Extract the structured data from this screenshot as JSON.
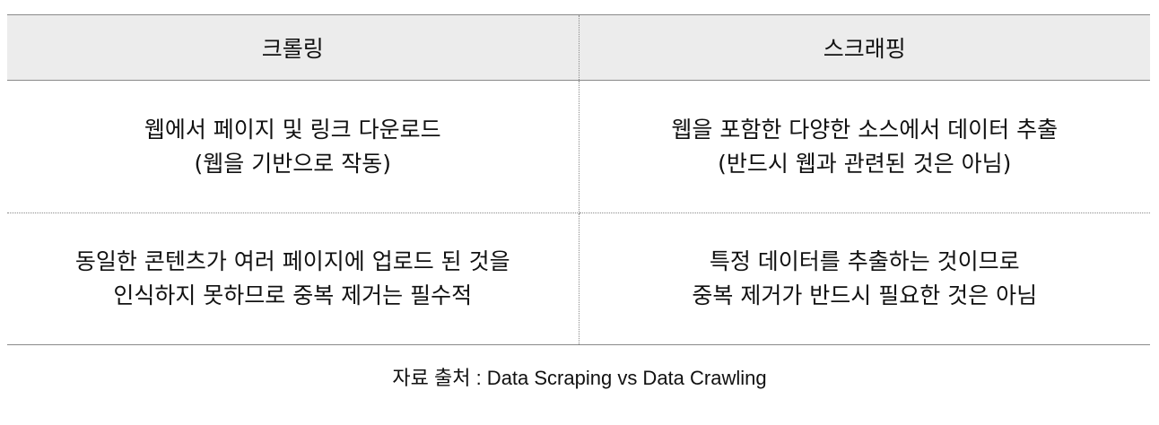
{
  "table": {
    "headers": [
      "크롤링",
      "스크래핑"
    ],
    "rows": [
      {
        "crawling": [
          "웹에서 페이지 및 링크 다운로드",
          "(웹을 기반으로 작동)"
        ],
        "scraping": [
          "웹을 포함한 다양한 소스에서 데이터 추출",
          "(반드시 웹과 관련된 것은 아님)"
        ]
      },
      {
        "crawling": [
          "동일한 콘텐츠가 여러 페이지에 업로드 된 것을",
          "인식하지 못하므로 중복 제거는 필수적"
        ],
        "scraping": [
          "특정 데이터를 추출하는 것이므로",
          "중복 제거가 반드시 필요한 것은 아님"
        ]
      }
    ]
  },
  "source": "자료 출처 : Data Scraping vs Data Crawling",
  "colors": {
    "header_bg": "#ececec",
    "rule": "#8a8a8a",
    "text": "#111111"
  }
}
